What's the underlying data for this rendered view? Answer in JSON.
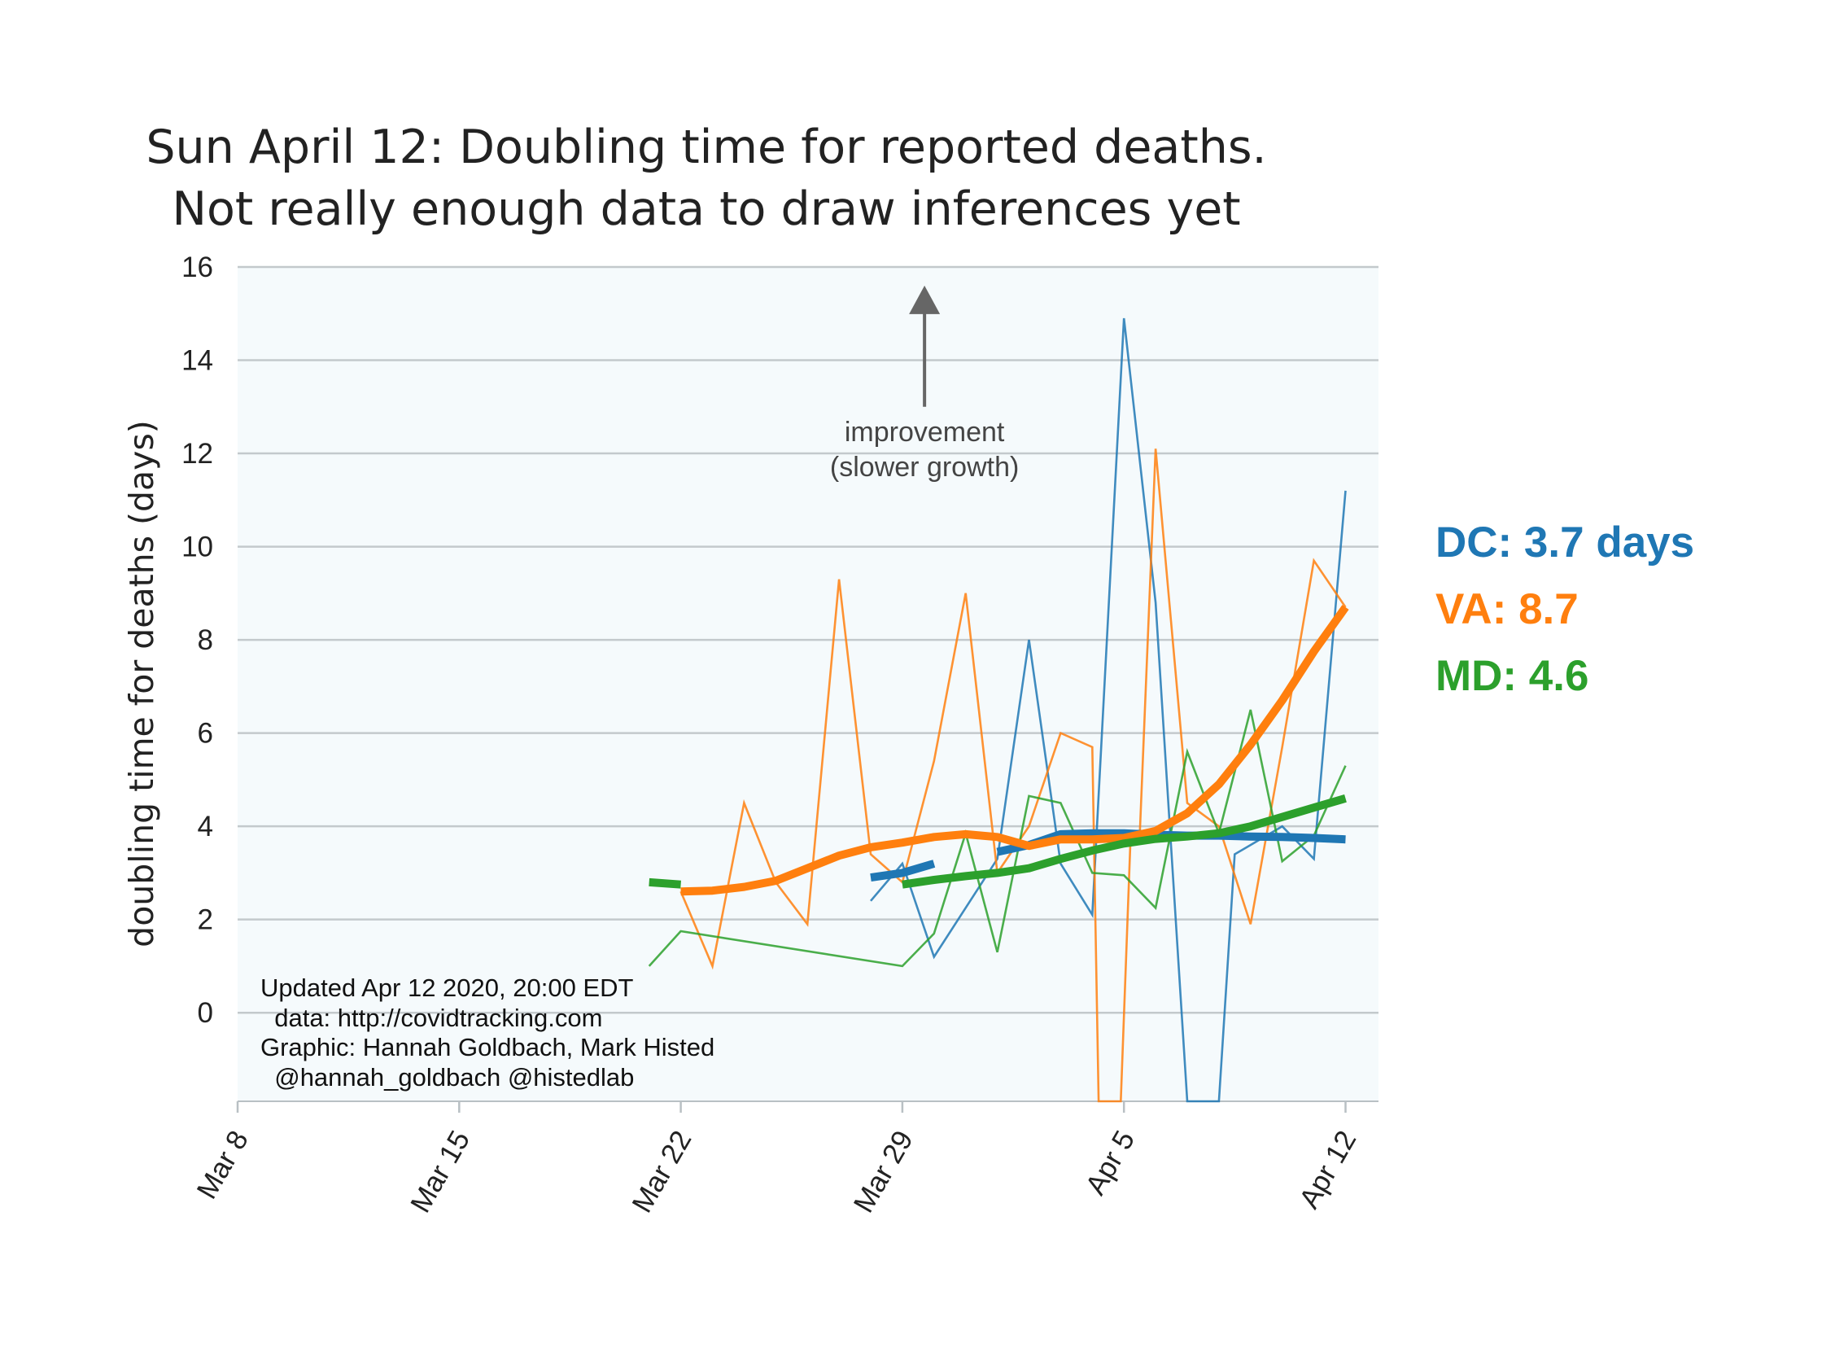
{
  "chart_data": {
    "type": "line",
    "title_lines": [
      "Sun April 12: Doubling time for reported deaths.",
      "Not really enough data to draw inferences yet"
    ],
    "xlabel": "",
    "ylabel": "doubling time for deaths (days)",
    "ylim": [
      -1.9,
      16
    ],
    "yticks": [
      0,
      2,
      4,
      6,
      8,
      10,
      12,
      14,
      16
    ],
    "xlim_days": [
      0,
      35.5
    ],
    "xticks": [
      {
        "day": 0,
        "label": "Mar 8"
      },
      {
        "day": 7,
        "label": "Mar 15"
      },
      {
        "day": 14,
        "label": "Mar 22"
      },
      {
        "day": 21,
        "label": "Mar 29"
      },
      {
        "day": 28,
        "label": "Apr 5"
      },
      {
        "day": 35,
        "label": "Apr 12"
      }
    ],
    "grid": "horizontal",
    "annotation": {
      "lines": [
        "improvement",
        "(slower growth)"
      ],
      "arrow_x_day": 21.7,
      "arrow_from_y": 13,
      "arrow_to_y": 15.6
    },
    "credits": [
      "Updated Apr 12 2020, 20:00 EDT",
      "  data: http://covidtracking.com",
      "Graphic: Hannah Goldbach, Mark Histed",
      "  @hannah_goldbach @histedlab"
    ],
    "legend": [
      {
        "text": "DC: 3.7 days",
        "color": "#1f77b4"
      },
      {
        "text": "VA: 8.7",
        "color": "#ff7f0e"
      },
      {
        "text": "MD: 4.6",
        "color": "#2ca02c"
      }
    ],
    "series": [
      {
        "name": "DC",
        "color": "#1f77b4",
        "raw": [
          {
            "day": 20,
            "y": 2.4
          },
          {
            "day": 21,
            "y": 3.2
          },
          {
            "day": 22,
            "y": 1.2
          },
          {
            "day": 24,
            "y": 3.3
          },
          {
            "day": 25,
            "y": 8.0
          },
          {
            "day": 26,
            "y": 3.2
          },
          {
            "day": 27,
            "y": 2.1
          },
          {
            "day": 28,
            "y": 14.9
          },
          {
            "day": 29,
            "y": 8.8
          },
          {
            "day": 30,
            "y": -1.9
          },
          {
            "day": 31,
            "y": -1.9
          },
          {
            "day": 31.5,
            "y": 3.4
          },
          {
            "day": 32,
            "y": 3.6
          },
          {
            "day": 33,
            "y": 4.0
          },
          {
            "day": 34,
            "y": 3.3
          },
          {
            "day": 35,
            "y": 11.2
          }
        ],
        "smoothed_segments": [
          [
            {
              "day": 20,
              "y": 2.9
            },
            {
              "day": 21,
              "y": 3.0
            },
            {
              "day": 22,
              "y": 3.2
            }
          ],
          [
            {
              "day": 24,
              "y": 3.45
            },
            {
              "day": 25,
              "y": 3.6
            },
            {
              "day": 26,
              "y": 3.83
            },
            {
              "day": 27,
              "y": 3.85
            },
            {
              "day": 28,
              "y": 3.85
            },
            {
              "day": 29,
              "y": 3.82
            },
            {
              "day": 30,
              "y": 3.8
            },
            {
              "day": 31,
              "y": 3.8
            },
            {
              "day": 32,
              "y": 3.78
            },
            {
              "day": 33,
              "y": 3.77
            },
            {
              "day": 34,
              "y": 3.75
            },
            {
              "day": 35,
              "y": 3.72
            }
          ]
        ]
      },
      {
        "name": "VA",
        "color": "#ff7f0e",
        "raw": [
          {
            "day": 14,
            "y": 2.6
          },
          {
            "day": 15,
            "y": 1.0
          },
          {
            "day": 16,
            "y": 4.5
          },
          {
            "day": 17,
            "y": 2.8
          },
          {
            "day": 18,
            "y": 1.9
          },
          {
            "day": 19,
            "y": 9.3
          },
          {
            "day": 20,
            "y": 3.4
          },
          {
            "day": 21,
            "y": 2.8
          },
          {
            "day": 22,
            "y": 5.4
          },
          {
            "day": 23,
            "y": 9.0
          },
          {
            "day": 24,
            "y": 3.0
          },
          {
            "day": 25,
            "y": 4.0
          },
          {
            "day": 26,
            "y": 6.0
          },
          {
            "day": 27,
            "y": 5.7
          },
          {
            "day": 27.2,
            "y": -1.9
          },
          {
            "day": 27.9,
            "y": -1.9
          },
          {
            "day": 28.2,
            "y": 3.6
          },
          {
            "day": 28.5,
            "y": 3.8
          },
          {
            "day": 29,
            "y": 12.1
          },
          {
            "day": 30,
            "y": 4.5
          },
          {
            "day": 31,
            "y": 4.0
          },
          {
            "day": 32,
            "y": 1.9
          },
          {
            "day": 33,
            "y": 5.7
          },
          {
            "day": 34,
            "y": 9.7
          },
          {
            "day": 35,
            "y": 8.7
          }
        ],
        "smoothed_segments": [
          [
            {
              "day": 14,
              "y": 2.6
            },
            {
              "day": 15,
              "y": 2.62
            },
            {
              "day": 16,
              "y": 2.7
            },
            {
              "day": 17,
              "y": 2.83
            },
            {
              "day": 18,
              "y": 3.1
            },
            {
              "day": 19,
              "y": 3.37
            },
            {
              "day": 20,
              "y": 3.55
            },
            {
              "day": 21,
              "y": 3.65
            },
            {
              "day": 22,
              "y": 3.77
            },
            {
              "day": 23,
              "y": 3.83
            },
            {
              "day": 24,
              "y": 3.77
            },
            {
              "day": 25,
              "y": 3.58
            },
            {
              "day": 26,
              "y": 3.72
            },
            {
              "day": 27,
              "y": 3.72
            },
            {
              "day": 28,
              "y": 3.75
            },
            {
              "day": 29,
              "y": 3.9
            },
            {
              "day": 30,
              "y": 4.28
            },
            {
              "day": 31,
              "y": 4.9
            },
            {
              "day": 32,
              "y": 5.75
            },
            {
              "day": 33,
              "y": 6.7
            },
            {
              "day": 34,
              "y": 7.75
            },
            {
              "day": 35,
              "y": 8.7
            }
          ]
        ]
      },
      {
        "name": "MD",
        "color": "#2ca02c",
        "raw": [
          {
            "day": 13,
            "y": 1.0
          },
          {
            "day": 14,
            "y": 1.75
          },
          {
            "day": 21,
            "y": 1.0
          },
          {
            "day": 22,
            "y": 1.7
          },
          {
            "day": 23,
            "y": 3.85
          },
          {
            "day": 24,
            "y": 1.3
          },
          {
            "day": 25,
            "y": 4.65
          },
          {
            "day": 26,
            "y": 4.5
          },
          {
            "day": 27,
            "y": 3.0
          },
          {
            "day": 28,
            "y": 2.95
          },
          {
            "day": 29,
            "y": 2.25
          },
          {
            "day": 30,
            "y": 5.6
          },
          {
            "day": 31,
            "y": 3.85
          },
          {
            "day": 32,
            "y": 6.5
          },
          {
            "day": 33,
            "y": 3.25
          },
          {
            "day": 34,
            "y": 3.8
          },
          {
            "day": 35,
            "y": 5.3
          }
        ],
        "smoothed_segments": [
          [
            {
              "day": 13,
              "y": 2.8
            },
            {
              "day": 14,
              "y": 2.75
            }
          ],
          [
            {
              "day": 21,
              "y": 2.75
            },
            {
              "day": 22,
              "y": 2.85
            },
            {
              "day": 23,
              "y": 2.93
            },
            {
              "day": 24,
              "y": 3.0
            },
            {
              "day": 25,
              "y": 3.1
            },
            {
              "day": 26,
              "y": 3.3
            },
            {
              "day": 27,
              "y": 3.48
            },
            {
              "day": 28,
              "y": 3.63
            },
            {
              "day": 29,
              "y": 3.73
            },
            {
              "day": 30,
              "y": 3.78
            },
            {
              "day": 31,
              "y": 3.85
            },
            {
              "day": 32,
              "y": 4.0
            },
            {
              "day": 33,
              "y": 4.2
            },
            {
              "day": 34,
              "y": 4.4
            },
            {
              "day": 35,
              "y": 4.6
            }
          ]
        ]
      }
    ]
  }
}
